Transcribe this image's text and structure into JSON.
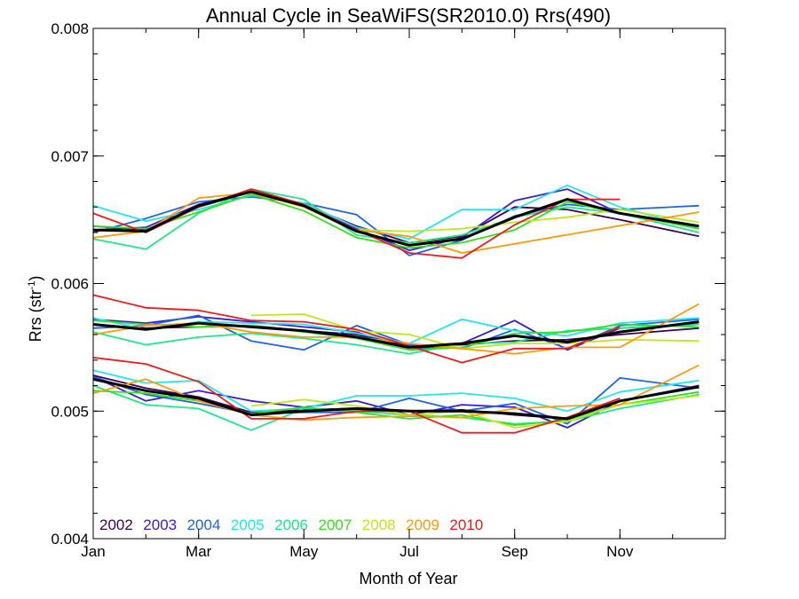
{
  "chart_data": {
    "type": "line",
    "title": "Annual Cycle in SeaWiFS(SR2010.0) Rrs(490)",
    "xlabel": "Month of Year",
    "ylabel": {
      "base": "Rrs (str",
      "sup": "-1",
      "close": ")"
    },
    "xlim": [
      1,
      13
    ],
    "ylim": [
      0.004,
      0.008
    ],
    "x_ticks": [
      {
        "value": 1,
        "label": "Jan"
      },
      {
        "value": 3,
        "label": "Mar"
      },
      {
        "value": 5,
        "label": "May"
      },
      {
        "value": 7,
        "label": "Jul"
      },
      {
        "value": 9,
        "label": "Sep"
      },
      {
        "value": 11,
        "label": "Nov"
      }
    ],
    "y_ticks": [
      {
        "value": 0.004,
        "label": "0.004"
      },
      {
        "value": 0.005,
        "label": "0.005"
      },
      {
        "value": 0.006,
        "label": "0.006"
      },
      {
        "value": 0.007,
        "label": "0.007"
      },
      {
        "value": 0.008,
        "label": "0.008"
      }
    ],
    "legend_position": "bottom-left",
    "mean_color": "#000000",
    "series": [
      {
        "name": "2002",
        "color": "#3d0058",
        "groups": [
          {
            "x": [
              1,
              2,
              3,
              4,
              5,
              6,
              7,
              8,
              9,
              10,
              11,
              12.5
            ],
            "y": [
              0.00645,
              0.00642,
              0.0066,
              0.00672,
              0.00662,
              0.00645,
              0.00632,
              0.00637,
              0.0066,
              0.00658,
              0.0065,
              0.00637
            ]
          },
          {
            "x": [
              1,
              2,
              3,
              4,
              5,
              6,
              7,
              8,
              9,
              10,
              11,
              12.5
            ],
            "y": [
              0.00568,
              0.00565,
              0.00566,
              0.00567,
              0.00563,
              0.0056,
              0.00551,
              0.00552,
              0.00555,
              0.00556,
              0.0056,
              0.00565
            ]
          },
          {
            "x": [
              1,
              2,
              3,
              4,
              5,
              6,
              7,
              8,
              9,
              10,
              11,
              12.5
            ],
            "y": [
              0.00528,
              0.00518,
              0.00511,
              0.00499,
              0.00501,
              0.00502,
              0.005,
              0.00501,
              0.00497,
              0.00494,
              0.00508,
              0.0052
            ]
          }
        ]
      },
      {
        "name": "2003",
        "color": "#3b1ad6",
        "groups": [
          {
            "x": [
              1,
              2,
              3,
              4,
              5,
              6,
              7,
              8,
              9,
              10,
              11,
              12.5
            ],
            "y": [
              0.00642,
              0.00644,
              0.00662,
              0.00672,
              0.00661,
              0.00643,
              0.00626,
              0.00636,
              0.00665,
              0.00674,
              0.00655,
              0.00645
            ]
          },
          {
            "x": [
              1,
              2,
              3,
              4,
              5,
              6,
              7,
              8,
              9,
              10,
              11,
              12.5
            ],
            "y": [
              0.00572,
              0.00569,
              0.00574,
              0.0057,
              0.00566,
              0.00562,
              0.00548,
              0.00553,
              0.00571,
              0.00548,
              0.00565,
              0.00568
            ]
          },
          {
            "x": [
              1,
              2,
              3,
              4,
              5,
              6,
              7,
              8,
              9,
              10,
              11,
              12.5
            ],
            "y": [
              0.00527,
              0.00508,
              0.00516,
              0.00508,
              0.00503,
              0.00508,
              0.00497,
              0.00505,
              0.00503,
              0.00487,
              0.00508,
              0.0052
            ]
          }
        ]
      },
      {
        "name": "2004",
        "color": "#1d64e8",
        "groups": [
          {
            "x": [
              1,
              2,
              3,
              4,
              5,
              6,
              7,
              8,
              9,
              10,
              11,
              12.5
            ],
            "y": [
              0.0064,
              0.00651,
              0.00664,
              0.00668,
              0.00663,
              0.00654,
              0.00622,
              0.00634,
              0.00653,
              0.00662,
              0.00658,
              0.00661
            ]
          },
          {
            "x": [
              1,
              2,
              3,
              4,
              5,
              6,
              7,
              8,
              9,
              10,
              11,
              12.5
            ],
            "y": [
              0.00565,
              0.00567,
              0.00575,
              0.00555,
              0.00548,
              0.00567,
              0.00552,
              0.00549,
              0.00564,
              0.00549,
              0.00567,
              0.00572
            ]
          },
          {
            "x": [
              1,
              2,
              3,
              4,
              5,
              6,
              7,
              8,
              9,
              10,
              11,
              12.5
            ],
            "y": [
              0.00527,
              0.00513,
              0.00506,
              0.00498,
              0.00499,
              0.00499,
              0.0051,
              0.005,
              0.00506,
              0.0049,
              0.00526,
              0.00518
            ]
          }
        ]
      },
      {
        "name": "2005",
        "color": "#22e6f0",
        "groups": [
          {
            "x": [
              1,
              2,
              3,
              4,
              5,
              6,
              7,
              8,
              9,
              10,
              11,
              12.5
            ],
            "y": [
              0.00661,
              0.00649,
              0.00658,
              0.00669,
              0.00663,
              0.00644,
              0.00635,
              0.00658,
              0.00658,
              0.00677,
              0.0066,
              0.00643
            ]
          },
          {
            "x": [
              1,
              2,
              3,
              4,
              5,
              6,
              7,
              8,
              9,
              10,
              11,
              12.5
            ],
            "y": [
              0.00573,
              0.00564,
              0.0057,
              0.00569,
              0.00568,
              0.00561,
              0.00553,
              0.00572,
              0.00563,
              0.00559,
              0.00569,
              0.00573
            ]
          },
          {
            "x": [
              1,
              2,
              3,
              4,
              5,
              6,
              7,
              8,
              9,
              10,
              11,
              12.5
            ],
            "y": [
              0.00532,
              0.00522,
              0.00524,
              0.005,
              0.00502,
              0.00512,
              0.00512,
              0.00514,
              0.0051,
              0.005,
              0.00515,
              0.00524
            ]
          }
        ]
      },
      {
        "name": "2006",
        "color": "#1ee88a",
        "groups": [
          {
            "x": [
              1,
              2,
              3,
              4,
              5,
              6,
              7,
              8,
              9,
              10,
              11,
              12.5
            ],
            "y": [
              0.00635,
              0.00627,
              0.00655,
              0.00674,
              0.00666,
              0.00638,
              0.00632,
              0.00638,
              0.00652,
              0.0066,
              0.00655,
              0.0064
            ]
          },
          {
            "x": [
              1,
              2,
              3,
              4,
              5,
              6,
              7,
              8,
              9,
              10,
              11,
              12.5
            ],
            "y": [
              0.00562,
              0.00552,
              0.00558,
              0.00561,
              0.00557,
              0.00552,
              0.00545,
              0.00553,
              0.00554,
              0.00563,
              0.00565,
              0.00568
            ]
          },
          {
            "x": [
              1,
              2,
              3,
              4,
              5,
              6,
              7,
              8,
              9,
              10,
              11,
              12.5
            ],
            "y": [
              0.0052,
              0.00505,
              0.00502,
              0.00485,
              0.00502,
              0.005,
              0.00497,
              0.00495,
              0.0049,
              0.00492,
              0.00502,
              0.00513
            ]
          }
        ]
      },
      {
        "name": "2007",
        "color": "#33e01e",
        "groups": [
          {
            "x": [
              1,
              2,
              3,
              4,
              5,
              6,
              7,
              8,
              9,
              10,
              11,
              12.5
            ],
            "y": [
              0.00645,
              0.00643,
              0.00656,
              0.0067,
              0.00657,
              0.00636,
              0.00628,
              0.00632,
              0.00642,
              0.00664,
              0.00655,
              0.00643
            ]
          },
          {
            "x": [
              1,
              2,
              3,
              4,
              5,
              6,
              7,
              8,
              9,
              10,
              11,
              12.5
            ],
            "y": [
              0.00571,
              0.00568,
              0.00566,
              0.00567,
              0.00562,
              0.00557,
              0.00548,
              0.0055,
              0.00561,
              0.00562,
              0.00568,
              0.00566
            ]
          },
          {
            "x": [
              1,
              2,
              3,
              4,
              5,
              6,
              7,
              8,
              9,
              10,
              11,
              12.5
            ],
            "y": [
              0.00516,
              0.00514,
              0.00508,
              0.00498,
              0.00503,
              0.00499,
              0.00494,
              0.00497,
              0.00489,
              0.00493,
              0.00505,
              0.00515
            ]
          }
        ]
      },
      {
        "name": "2008",
        "color": "#c0e81e",
        "groups": [
          {
            "x": [
              4,
              5,
              6,
              7,
              8,
              9,
              10,
              11,
              12.5
            ],
            "y": [
              0.00575,
              0.00576,
              0.00563,
              0.0056,
              0.00549,
              0.00553,
              0.00553,
              0.00556,
              0.00555
            ]
          },
          {
            "x": [
              6,
              7,
              8,
              9,
              10,
              11,
              12.5
            ],
            "y": [
              0.00642,
              0.00641,
              0.00643,
              0.00648,
              0.00652,
              0.00658,
              0.00648
            ]
          },
          {
            "x": [
              4,
              5,
              6,
              7,
              8,
              9,
              10,
              11,
              12.5
            ],
            "y": [
              0.00504,
              0.00509,
              0.00504,
              0.00497,
              0.005,
              0.00487,
              0.00492,
              0.00505,
              0.00512
            ]
          }
        ]
      },
      {
        "name": "2009",
        "color": "#ff9a0a",
        "groups": [
          {
            "x": [
              1,
              2,
              3,
              4,
              5,
              6,
              7,
              8,
              12.5
            ],
            "y": [
              0.00636,
              0.00641,
              0.00667,
              0.00671,
              0.0066,
              0.00642,
              0.00637,
              0.00624,
              0.00656
            ]
          },
          {
            "x": [
              1,
              2,
              3,
              4,
              5,
              6,
              7,
              8,
              9,
              10,
              11,
              12.5
            ],
            "y": [
              0.0056,
              0.00567,
              0.00569,
              0.00562,
              0.00558,
              0.00558,
              0.00553,
              0.00549,
              0.00545,
              0.0055,
              0.0055,
              0.00584
            ]
          },
          {
            "x": [
              1,
              2,
              3,
              4,
              5,
              6,
              7,
              8,
              9,
              10,
              11,
              12.5
            ],
            "y": [
              0.00514,
              0.00525,
              0.00508,
              0.00497,
              0.00493,
              0.00495,
              0.00496,
              0.00495,
              0.00502,
              0.00504,
              0.00505,
              0.00536
            ]
          }
        ]
      },
      {
        "name": "2010",
        "color": "#f01a1a",
        "groups": [
          {
            "x": [
              1,
              2,
              3,
              4,
              5,
              6,
              7,
              8,
              9,
              10,
              11
            ],
            "y": [
              0.00655,
              0.0064,
              0.0066,
              0.00674,
              0.00662,
              0.00642,
              0.00624,
              0.0062,
              0.00646,
              0.00666,
              0.00666
            ]
          },
          {
            "x": [
              1,
              2,
              3,
              4,
              5,
              6,
              7,
              8,
              9,
              10,
              11
            ],
            "y": [
              0.00591,
              0.00581,
              0.00579,
              0.00571,
              0.0057,
              0.00564,
              0.00551,
              0.00538,
              0.00549,
              0.00549,
              0.00566
            ]
          },
          {
            "x": [
              1,
              2,
              3,
              4,
              5,
              6,
              7,
              8,
              9,
              10,
              11
            ],
            "y": [
              0.00542,
              0.00537,
              0.00523,
              0.00494,
              0.00494,
              0.005,
              0.005,
              0.00483,
              0.00483,
              0.00495,
              0.0051
            ]
          }
        ]
      }
    ],
    "mean": [
      {
        "x": [
          1,
          2,
          3,
          4,
          5,
          6,
          7,
          8,
          9,
          10,
          11,
          12.5
        ],
        "y": [
          0.00642,
          0.00641,
          0.00661,
          0.00672,
          0.00661,
          0.00641,
          0.0063,
          0.00635,
          0.00652,
          0.00666,
          0.00655,
          0.00645
        ]
      },
      {
        "x": [
          1,
          2,
          3,
          4,
          5,
          6,
          7,
          8,
          9,
          10,
          11,
          12.5
        ],
        "y": [
          0.00568,
          0.00564,
          0.00569,
          0.00566,
          0.00563,
          0.00558,
          0.0055,
          0.00553,
          0.00559,
          0.00554,
          0.00562,
          0.0057
        ]
      },
      {
        "x": [
          1,
          2,
          3,
          4,
          5,
          6,
          7,
          8,
          9,
          10,
          11,
          12.5
        ],
        "y": [
          0.00525,
          0.00516,
          0.0051,
          0.00497,
          0.005,
          0.00502,
          0.005,
          0.005,
          0.00498,
          0.00494,
          0.00508,
          0.00519
        ]
      }
    ]
  }
}
